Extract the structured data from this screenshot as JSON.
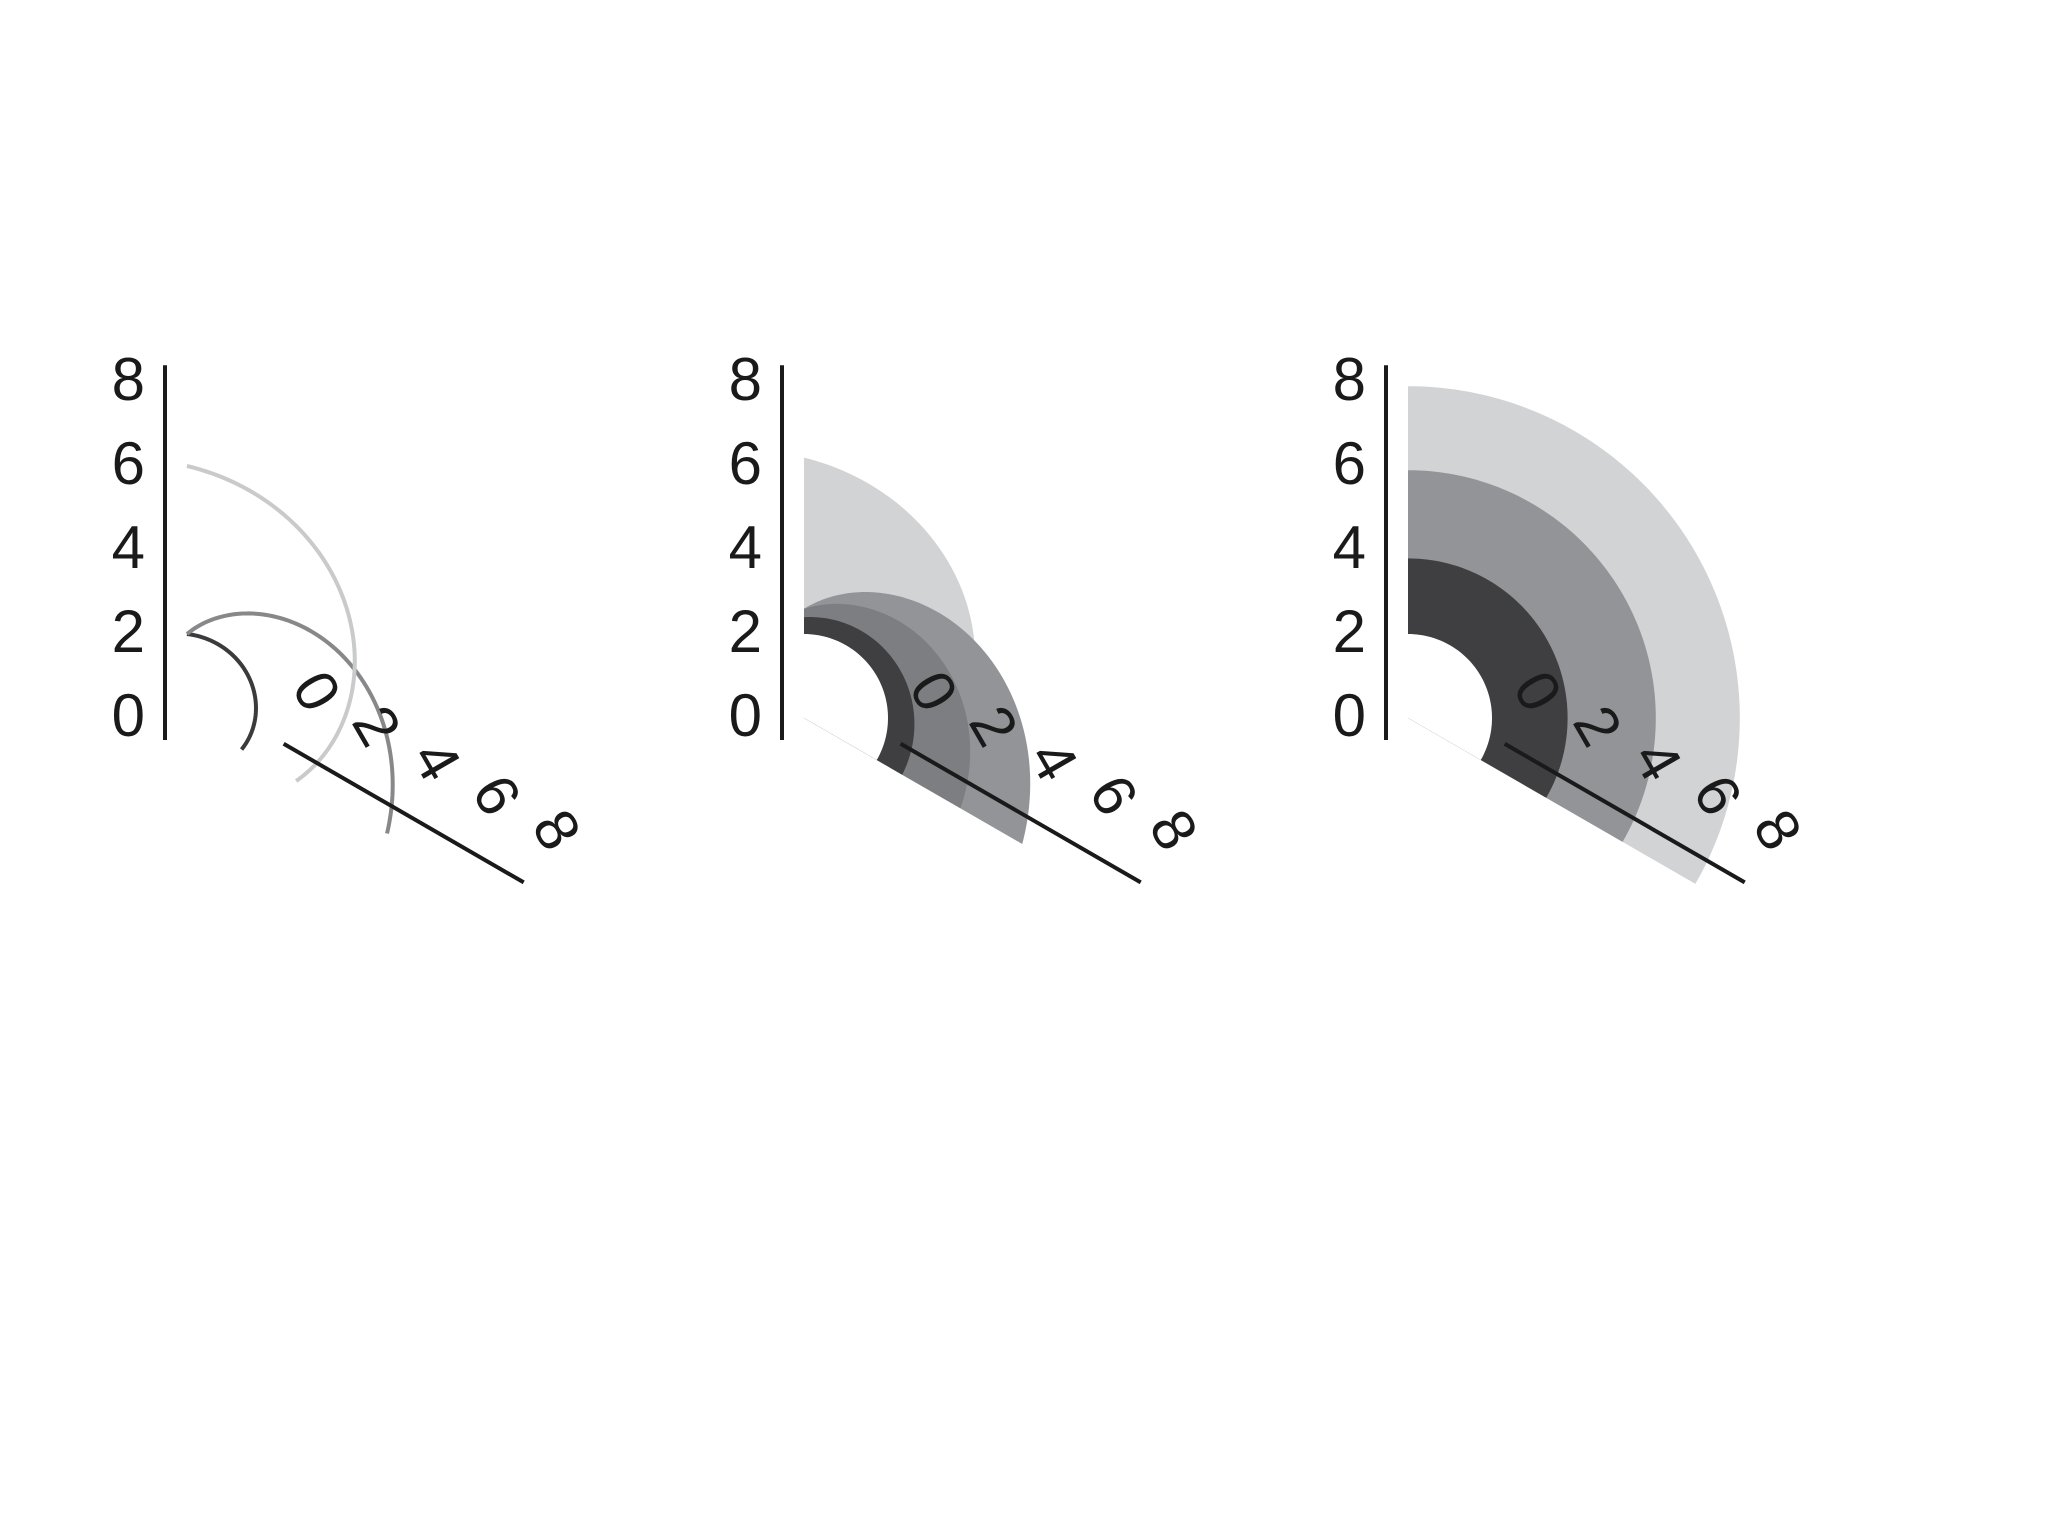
{
  "chart_data": [
    {
      "type": "radial-arc",
      "panel": "left",
      "style": "lines",
      "radial_axis_ticks": [
        0,
        2,
        4,
        6,
        8
      ],
      "angular_axis_ticks": [
        0,
        2,
        4,
        6,
        8
      ],
      "axis_range": [
        0,
        8
      ],
      "inner_radius": 0,
      "series": [
        {
          "values": [
            2.0,
            1.5
          ],
          "color": "#3b3b3d"
        },
        {
          "values": [
            2.0,
            5.5
          ],
          "color": "#88888b"
        },
        {
          "values": [
            6.0,
            3.0
          ],
          "color": "#c9cacc"
        }
      ]
    },
    {
      "type": "radial-area",
      "panel": "middle",
      "style": "overlapping-areas",
      "radial_axis_ticks": [
        0,
        2,
        4,
        6,
        8
      ],
      "angular_axis_ticks": [
        0,
        2,
        4,
        6,
        8
      ],
      "axis_range": [
        0,
        8
      ],
      "inner_radius": 0,
      "series": [
        {
          "values": [
            6.2,
            3.0
          ],
          "color": "#d2d3d5"
        },
        {
          "values": [
            2.6,
            6.0
          ],
          "color": "#939497"
        },
        {
          "values": [
            2.6,
            4.3
          ],
          "color": "#7d7e81"
        },
        {
          "values": [
            2.4,
            2.7
          ],
          "color": "#3f3f42"
        }
      ]
    },
    {
      "type": "radial-area",
      "panel": "right",
      "style": "stacked-bands",
      "radial_axis_ticks": [
        0,
        2,
        4,
        6,
        8
      ],
      "angular_axis_ticks": [
        0,
        2,
        4,
        6,
        8
      ],
      "axis_range": [
        0,
        8
      ],
      "inner_radius": 0,
      "series": [
        {
          "values": [
            7.9,
            7.9
          ],
          "color": "#d2d3d5"
        },
        {
          "values": [
            5.9,
            5.9
          ],
          "color": "#939497"
        },
        {
          "values": [
            3.8,
            3.8
          ],
          "color": "#3f3f42"
        }
      ]
    }
  ]
}
